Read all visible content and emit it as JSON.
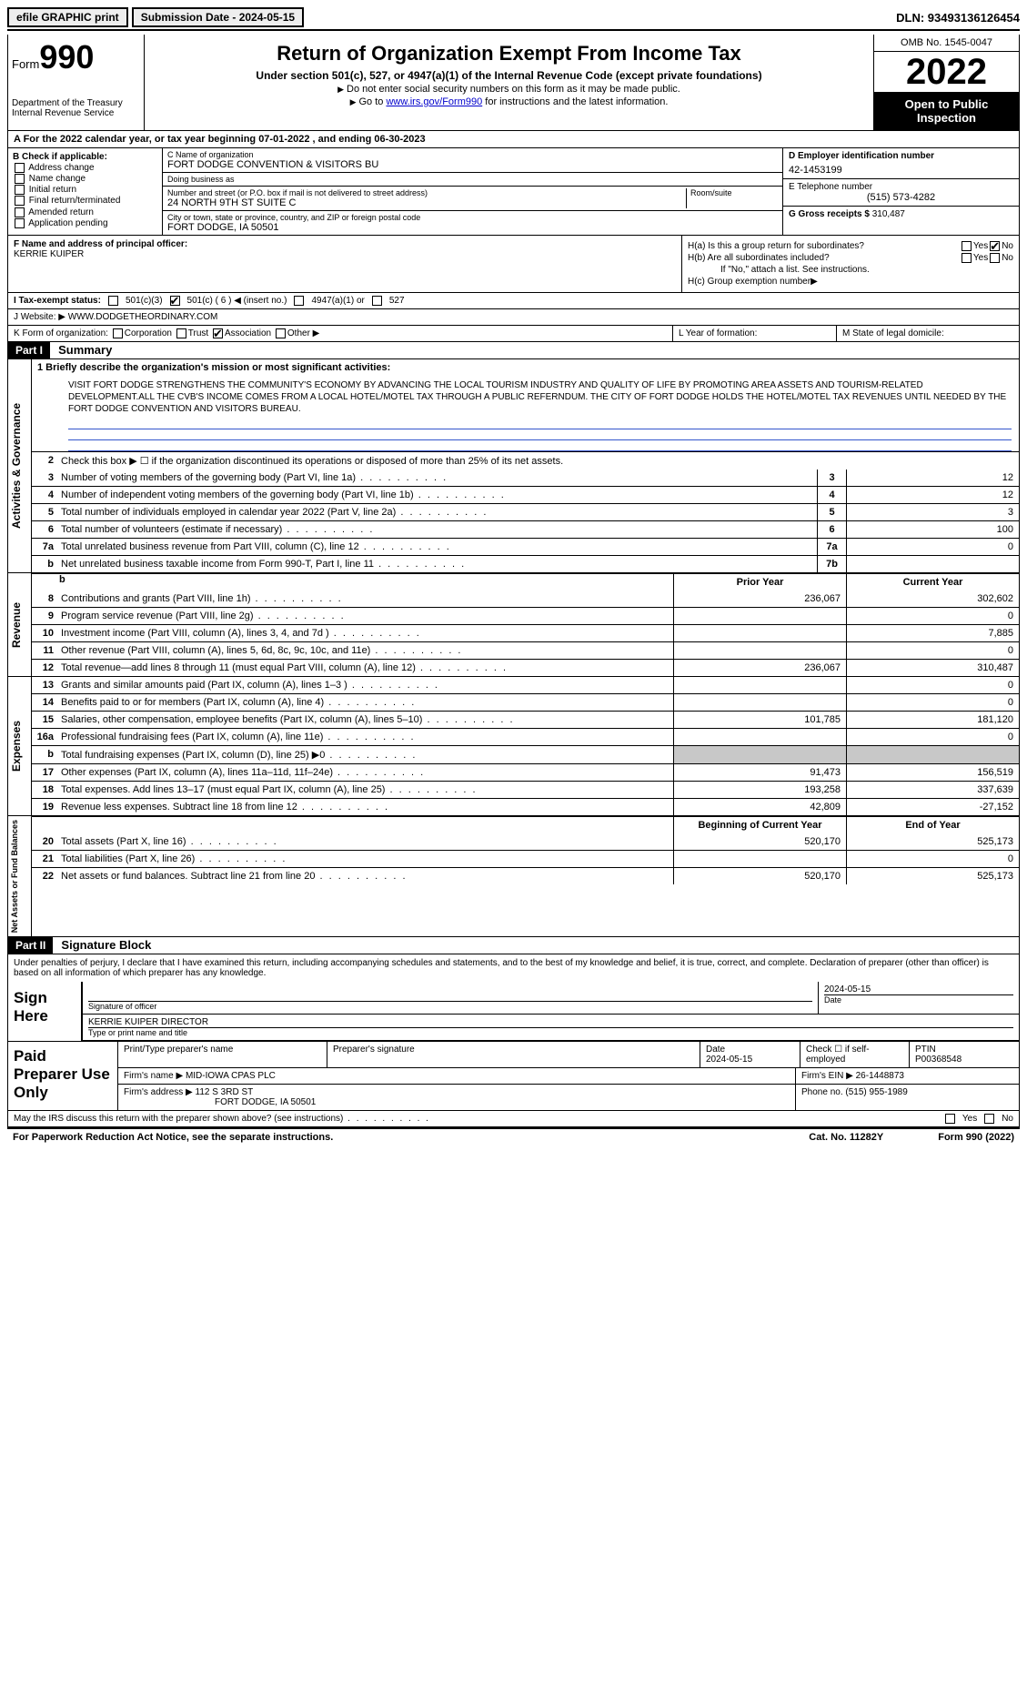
{
  "top": {
    "efile": "efile GRAPHIC print",
    "submission_label": "Submission Date - 2024-05-15",
    "dln": "DLN: 93493136126454"
  },
  "header": {
    "form_word": "Form",
    "form_num": "990",
    "dept": "Department of the Treasury",
    "irs": "Internal Revenue Service",
    "title": "Return of Organization Exempt From Income Tax",
    "sub": "Under section 501(c), 527, or 4947(a)(1) of the Internal Revenue Code (except private foundations)",
    "note1": "Do not enter social security numbers on this form as it may be made public.",
    "note2_pre": "Go to ",
    "note2_link": "www.irs.gov/Form990",
    "note2_post": " for instructions and the latest information.",
    "omb": "OMB No. 1545-0047",
    "year": "2022",
    "open": "Open to Public Inspection"
  },
  "a": {
    "text": "A For the 2022 calendar year, or tax year beginning 07-01-2022   , and ending 06-30-2023"
  },
  "b": {
    "label": "B Check if applicable:",
    "items": [
      "Address change",
      "Name change",
      "Initial return",
      "Final return/terminated",
      "Amended return",
      "Application pending"
    ]
  },
  "c": {
    "name_label": "C Name of organization",
    "name": "FORT DODGE CONVENTION & VISITORS BU",
    "dba_label": "Doing business as",
    "dba": "",
    "addr_label": "Number and street (or P.O. box if mail is not delivered to street address)",
    "addr": "24 NORTH 9TH ST SUITE C",
    "room_label": "Room/suite",
    "city_label": "City or town, state or province, country, and ZIP or foreign postal code",
    "city": "FORT DODGE, IA  50501"
  },
  "d": {
    "label": "D Employer identification number",
    "val": "42-1453199"
  },
  "e": {
    "label": "E Telephone number",
    "val": "(515) 573-4282"
  },
  "g": {
    "label": "G Gross receipts $",
    "val": "310,487"
  },
  "f": {
    "label": "F  Name and address of principal officer:",
    "name": "KERRIE KUIPER"
  },
  "h": {
    "a": "H(a)  Is this a group return for subordinates?",
    "b": "H(b)  Are all subordinates included?",
    "b_note": "If \"No,\" attach a list. See instructions.",
    "c": "H(c)  Group exemption number",
    "yes": "Yes",
    "no": "No"
  },
  "i": {
    "label": "I  Tax-exempt status:",
    "opt1": "501(c)(3)",
    "opt2": "501(c) ( 6 ) ◀ (insert no.)",
    "opt3": "4947(a)(1) or",
    "opt4": "527"
  },
  "j": {
    "label": "J  Website: ▶",
    "val": "WWW.DODGETHEORDINARY.COM"
  },
  "k": {
    "label": "K Form of organization:",
    "opts": [
      "Corporation",
      "Trust",
      "Association",
      "Other ▶"
    ]
  },
  "l": {
    "label": "L Year of formation:"
  },
  "m": {
    "label": "M State of legal domicile:"
  },
  "part1": {
    "hdr": "Part I",
    "title": "Summary"
  },
  "summary": {
    "side1": "Activities & Governance",
    "side2": "Revenue",
    "side3": "Expenses",
    "side4": "Net Assets or Fund Balances",
    "l1label": "1  Briefly describe the organization's mission or most significant activities:",
    "mission": "VISIT FORT DODGE STRENGTHENS THE COMMUNITY'S ECONOMY BY ADVANCING THE LOCAL TOURISM INDUSTRY AND QUALITY OF LIFE BY PROMOTING AREA ASSETS AND TOURISM-RELATED DEVELOPMENT.ALL THE CVB'S INCOME COMES FROM A LOCAL HOTEL/MOTEL TAX THROUGH A PUBLIC REFERNDUM. THE CITY OF FORT DODGE HOLDS THE HOTEL/MOTEL TAX REVENUES UNTIL NEEDED BY THE FORT DODGE CONVENTION AND VISITORS BUREAU.",
    "l2": "Check this box ▶ ☐  if the organization discontinued its operations or disposed of more than 25% of its net assets.",
    "rows_gov": [
      {
        "n": "3",
        "t": "Number of voting members of the governing body (Part VI, line 1a)",
        "box": "3",
        "v": "12"
      },
      {
        "n": "4",
        "t": "Number of independent voting members of the governing body (Part VI, line 1b)",
        "box": "4",
        "v": "12"
      },
      {
        "n": "5",
        "t": "Total number of individuals employed in calendar year 2022 (Part V, line 2a)",
        "box": "5",
        "v": "3"
      },
      {
        "n": "6",
        "t": "Total number of volunteers (estimate if necessary)",
        "box": "6",
        "v": "100"
      },
      {
        "n": "7a",
        "t": "Total unrelated business revenue from Part VIII, column (C), line 12",
        "box": "7a",
        "v": "0"
      },
      {
        "n": "b",
        "t": "Net unrelated business taxable income from Form 990-T, Part I, line 11",
        "box": "7b",
        "v": ""
      }
    ],
    "hdr_prior": "Prior Year",
    "hdr_curr": "Current Year",
    "rows_rev": [
      {
        "n": "8",
        "t": "Contributions and grants (Part VIII, line 1h)",
        "p": "236,067",
        "c": "302,602"
      },
      {
        "n": "9",
        "t": "Program service revenue (Part VIII, line 2g)",
        "p": "",
        "c": "0"
      },
      {
        "n": "10",
        "t": "Investment income (Part VIII, column (A), lines 3, 4, and 7d )",
        "p": "",
        "c": "7,885"
      },
      {
        "n": "11",
        "t": "Other revenue (Part VIII, column (A), lines 5, 6d, 8c, 9c, 10c, and 11e)",
        "p": "",
        "c": "0"
      },
      {
        "n": "12",
        "t": "Total revenue—add lines 8 through 11 (must equal Part VIII, column (A), line 12)",
        "p": "236,067",
        "c": "310,487"
      }
    ],
    "rows_exp": [
      {
        "n": "13",
        "t": "Grants and similar amounts paid (Part IX, column (A), lines 1–3 )",
        "p": "",
        "c": "0"
      },
      {
        "n": "14",
        "t": "Benefits paid to or for members (Part IX, column (A), line 4)",
        "p": "",
        "c": "0"
      },
      {
        "n": "15",
        "t": "Salaries, other compensation, employee benefits (Part IX, column (A), lines 5–10)",
        "p": "101,785",
        "c": "181,120"
      },
      {
        "n": "16a",
        "t": "Professional fundraising fees (Part IX, column (A), line 11e)",
        "p": "",
        "c": "0"
      },
      {
        "n": "b",
        "t": "Total fundraising expenses (Part IX, column (D), line 25) ▶0",
        "p": "shade",
        "c": "shade"
      },
      {
        "n": "17",
        "t": "Other expenses (Part IX, column (A), lines 11a–11d, 11f–24e)",
        "p": "91,473",
        "c": "156,519"
      },
      {
        "n": "18",
        "t": "Total expenses. Add lines 13–17 (must equal Part IX, column (A), line 25)",
        "p": "193,258",
        "c": "337,639"
      },
      {
        "n": "19",
        "t": "Revenue less expenses. Subtract line 18 from line 12",
        "p": "42,809",
        "c": "-27,152"
      }
    ],
    "hdr_beg": "Beginning of Current Year",
    "hdr_end": "End of Year",
    "rows_net": [
      {
        "n": "20",
        "t": "Total assets (Part X, line 16)",
        "p": "520,170",
        "c": "525,173"
      },
      {
        "n": "21",
        "t": "Total liabilities (Part X, line 26)",
        "p": "",
        "c": "0"
      },
      {
        "n": "22",
        "t": "Net assets or fund balances. Subtract line 21 from line 20",
        "p": "520,170",
        "c": "525,173"
      }
    ]
  },
  "part2": {
    "hdr": "Part II",
    "title": "Signature Block"
  },
  "sig": {
    "intro": "Under penalties of perjury, I declare that I have examined this return, including accompanying schedules and statements, and to the best of my knowledge and belief, it is true, correct, and complete. Declaration of preparer (other than officer) is based on all information of which preparer has any knowledge.",
    "sign_here": "Sign Here",
    "sig_label": "Signature of officer",
    "date_label": "Date",
    "date": "2024-05-15",
    "name": "KERRIE KUIPER  DIRECTOR",
    "name_label": "Type or print name and title"
  },
  "prep": {
    "label": "Paid Preparer Use Only",
    "h1": "Print/Type preparer's name",
    "h2": "Preparer's signature",
    "h3": "Date",
    "date": "2024-05-15",
    "h4": "Check ☐ if self-employed",
    "h5": "PTIN",
    "ptin": "P00368548",
    "firm_label": "Firm's name   ▶",
    "firm": "MID-IOWA CPAS PLC",
    "ein_label": "Firm's EIN ▶",
    "ein": "26-1448873",
    "addr_label": "Firm's address ▶",
    "addr1": "112 S 3RD ST",
    "addr2": "FORT DODGE, IA  50501",
    "phone_label": "Phone no.",
    "phone": "(515) 955-1989",
    "discuss": "May the IRS discuss this return with the preparer shown above? (see instructions)",
    "yes": "Yes",
    "no": "No"
  },
  "footer": {
    "l": "For Paperwork Reduction Act Notice, see the separate instructions.",
    "m": "Cat. No. 11282Y",
    "r": "Form 990 (2022)"
  }
}
